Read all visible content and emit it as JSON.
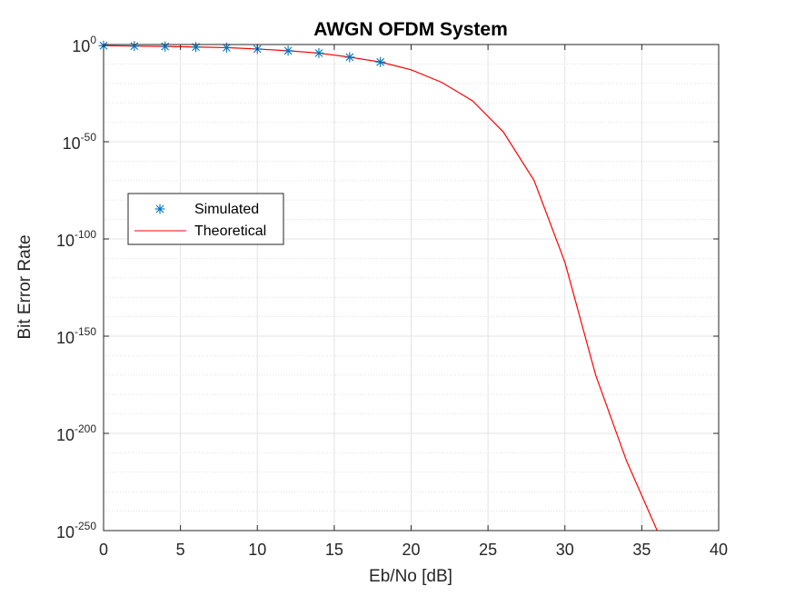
{
  "chart_data": {
    "type": "line",
    "title": "AWGN OFDM System",
    "xlabel": "Eb/No [dB]",
    "ylabel": "Bit Error Rate",
    "xlim": [
      0,
      40
    ],
    "ylim_log10": [
      -250,
      0
    ],
    "yscale": "log",
    "grid": true,
    "minor_grid": true,
    "legend_position": "left, middle",
    "x_ticks": [
      0,
      5,
      10,
      15,
      20,
      25,
      30,
      35,
      40
    ],
    "y_ticks": [
      {
        "base": "10",
        "exp": "0",
        "value_log10": 0
      },
      {
        "base": "10",
        "exp": "-50",
        "value_log10": -50
      },
      {
        "base": "10",
        "exp": "-100",
        "value_log10": -100
      },
      {
        "base": "10",
        "exp": "-150",
        "value_log10": -150
      },
      {
        "base": "10",
        "exp": "-200",
        "value_log10": -200
      },
      {
        "base": "10",
        "exp": "-250",
        "value_log10": -250
      }
    ],
    "series": [
      {
        "name": "Simulated",
        "marker": "asterisk",
        "color": "#0072BD",
        "x": [
          0,
          2,
          4,
          6,
          8,
          10,
          12,
          14,
          16,
          18
        ],
        "y_log10": [
          -0.6,
          -0.8,
          -1,
          -1.3,
          -1.6,
          -2.3,
          -3.2,
          -4.4,
          -6.5,
          -9
        ]
      },
      {
        "name": "Theoretical",
        "marker": "line",
        "color": "#FF0000",
        "x": [
          0,
          2,
          4,
          6,
          8,
          10,
          12,
          14,
          16,
          18,
          20,
          22,
          24,
          26,
          28,
          30,
          32,
          34,
          36
        ],
        "y_log10": [
          -0.6,
          -0.8,
          -1,
          -1.3,
          -1.6,
          -2.3,
          -3.2,
          -4.4,
          -6.5,
          -9,
          -13,
          -19.5,
          -29,
          -45,
          -70,
          -112,
          -170,
          -214,
          -250
        ]
      }
    ]
  }
}
